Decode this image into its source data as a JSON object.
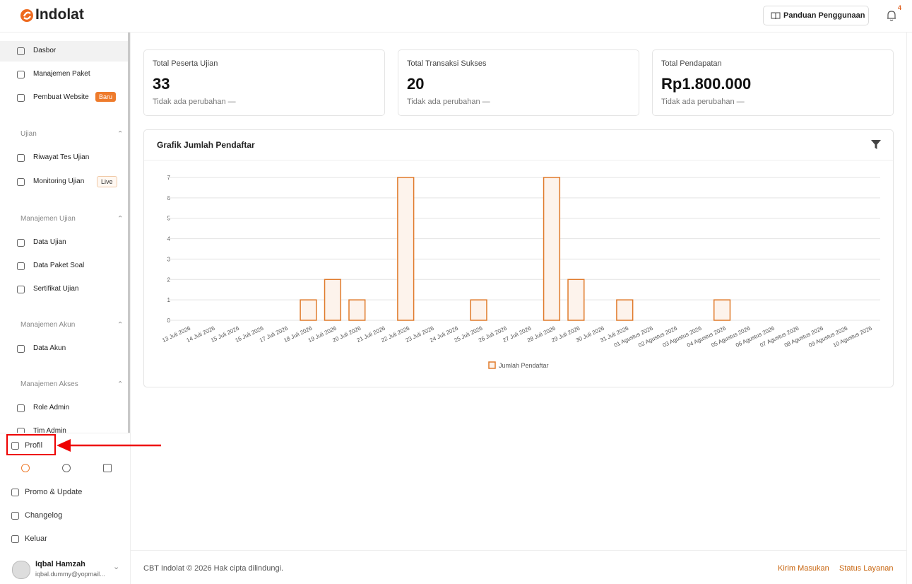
{
  "header": {
    "logo": "Indolat",
    "guide_button": "Panduan Penggunaan",
    "notification_count": 4
  },
  "sidebar": {
    "top_items": [
      {
        "label": "Dasbor"
      },
      {
        "label": "Manajemen Paket"
      },
      {
        "label": "Pembuat Website",
        "badge": "Baru"
      }
    ],
    "sections": [
      {
        "title": "Ujian",
        "items": [
          {
            "label": "Riwayat Tes Ujian"
          },
          {
            "label": "Monitoring Ujian",
            "badge": "Live"
          }
        ]
      },
      {
        "title": "Manajemen Ujian",
        "items": [
          {
            "label": "Data Ujian"
          },
          {
            "label": "Data Paket Soal"
          },
          {
            "label": "Sertifikat Ujian"
          }
        ]
      },
      {
        "title": "Manajemen Akun",
        "items": [
          {
            "label": "Data Akun"
          }
        ]
      },
      {
        "title": "Manajemen Akses",
        "items": [
          {
            "label": "Role Admin"
          },
          {
            "label": "Tim Admin"
          }
        ]
      }
    ],
    "bottom_items": [
      "Profil",
      "Promo & Update",
      "Changelog",
      "Keluar"
    ],
    "user": {
      "name": "Iqbal Hamzah",
      "email": "iqbal.dummy@yopmail..."
    }
  },
  "stats": [
    {
      "label": "Total Peserta Ujian",
      "value": 33,
      "note": "Tidak ada perubahan —"
    },
    {
      "label": "Total Transaksi Sukses",
      "value": 20,
      "note": "Tidak ada perubahan —"
    },
    {
      "label": "Total Pendapatan",
      "value": "Rp1.800.000",
      "note": "Tidak ada perubahan —"
    }
  ],
  "chart_data": {
    "type": "bar",
    "title": "Grafik Jumlah Pendaftar",
    "categories": [
      "13 Juli 2026",
      "14 Juli 2026",
      "15 Juli 2026",
      "16 Juli 2026",
      "17 Juli 2026",
      "18 Juli 2026",
      "19 Juli 2026",
      "20 Juli 2026",
      "21 Juli 2026",
      "22 Juli 2026",
      "23 Juli 2026",
      "24 Juli 2026",
      "25 Juli 2026",
      "26 Juli 2026",
      "27 Juli 2026",
      "28 Juli 2026",
      "29 Juli 2026",
      "30 Juli 2026",
      "31 Juli 2026",
      "01 Agustus 2026",
      "02 Agustus 2026",
      "03 Agustus 2026",
      "04 Agustus 2026",
      "05 Agustus 2026",
      "06 Agustus 2026",
      "07 Agustus 2026",
      "08 Agustus 2026",
      "09 Agustus 2026",
      "10 Agustus 2026"
    ],
    "series": [
      {
        "name": "Jumlah Pendaftar",
        "color": "#e07b2c",
        "values": [
          0,
          0,
          0,
          0,
          0,
          1,
          2,
          1,
          0,
          7,
          0,
          0,
          1,
          0,
          0,
          7,
          2,
          0,
          1,
          0,
          0,
          0,
          1,
          0,
          0,
          0,
          0,
          0,
          0
        ]
      }
    ],
    "ylim": [
      0,
      7
    ],
    "yticks": [
      0,
      1,
      2,
      3,
      4,
      5,
      6,
      7
    ],
    "grid": true,
    "legend": "bottom"
  },
  "footer": {
    "copyright": "CBT Indolat © 2026 Hak cipta dilindungi.",
    "links": [
      "Kirim Masukan",
      "Status Layanan"
    ]
  }
}
